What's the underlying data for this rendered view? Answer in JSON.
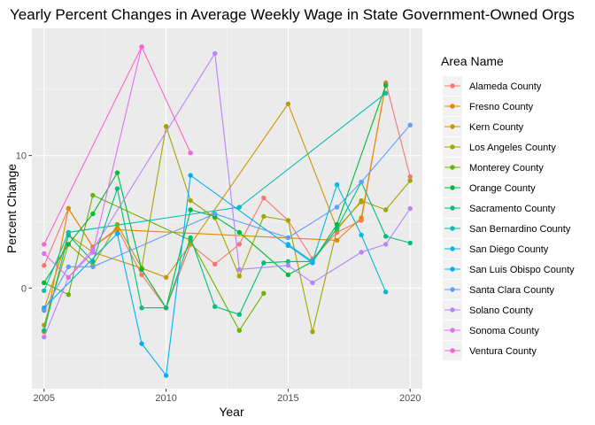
{
  "chart_data": {
    "type": "line",
    "title": "Yearly Percent Changes in Average Weekly Wage in State Government-Owned Orgs",
    "xlabel": "Year",
    "ylabel": "Percent Change",
    "xlim": [
      2004.5,
      2020.5
    ],
    "ylim": [
      -7.6,
      19.6
    ],
    "x_ticks": [
      2005,
      2010,
      2015,
      2020
    ],
    "y_ticks": [
      0,
      10
    ],
    "grid": true,
    "legend": {
      "title": "Area Name",
      "position": "right"
    },
    "series": [
      {
        "name": "Alameda County",
        "color": "#F8766D",
        "points": [
          [
            2005,
            1.7
          ],
          [
            2006,
            6.0
          ],
          [
            2007,
            3.1
          ],
          [
            2008,
            4.5
          ],
          [
            2009,
            1.0
          ],
          [
            2010,
            -1.5
          ],
          [
            2011,
            3.3
          ],
          [
            2012,
            1.8
          ],
          [
            2013,
            3.3
          ],
          [
            2014,
            6.8
          ],
          [
            2015,
            5.1
          ],
          [
            2016,
            2.2
          ],
          [
            2017,
            4.2
          ],
          [
            2018,
            5.1
          ],
          [
            2019,
            15.5
          ],
          [
            2020,
            8.4
          ]
        ]
      },
      {
        "name": "Fresno County",
        "color": "#E58700",
        "points": [
          [
            2005,
            -3.3
          ],
          [
            2006,
            6.0
          ],
          [
            2007,
            3.1
          ],
          [
            2008,
            4.4
          ],
          [
            2017,
            3.6
          ],
          [
            2018,
            5.3
          ],
          [
            2019,
            15.4
          ]
        ]
      },
      {
        "name": "Kern County",
        "color": "#C99800",
        "points": [
          [
            2005,
            -1.6
          ],
          [
            2006,
            4.0
          ],
          [
            2007,
            2.7
          ],
          [
            2009,
            1.5
          ],
          [
            2010,
            0.8
          ],
          [
            2011,
            3.3
          ],
          [
            2015,
            13.9
          ],
          [
            2017,
            4.5
          ],
          [
            2018,
            6.5
          ]
        ]
      },
      {
        "name": "Los Angeles County",
        "color": "#A3A500",
        "points": [
          [
            2005,
            -2.8
          ],
          [
            2006,
            3.3
          ],
          [
            2007,
            1.7
          ],
          [
            2008,
            4.8
          ],
          [
            2009,
            1.5
          ],
          [
            2010,
            12.2
          ],
          [
            2011,
            6.6
          ],
          [
            2012,
            5.3
          ],
          [
            2013,
            0.9
          ],
          [
            2014,
            5.4
          ],
          [
            2015,
            5.1
          ],
          [
            2016,
            -3.3
          ],
          [
            2017,
            4.4
          ],
          [
            2018,
            6.6
          ],
          [
            2019,
            5.9
          ],
          [
            2020,
            8.1
          ]
        ]
      },
      {
        "name": "Monterey County",
        "color": "#6BB100",
        "points": [
          [
            2005,
            0.4
          ],
          [
            2006,
            -0.5
          ],
          [
            2007,
            7.0
          ],
          [
            2011,
            3.6
          ],
          [
            2013,
            -3.2
          ],
          [
            2014,
            -0.4
          ]
        ]
      },
      {
        "name": "Orange County",
        "color": "#00BA38",
        "points": [
          [
            2005,
            0.4
          ],
          [
            2006,
            3.3
          ],
          [
            2007,
            5.6
          ],
          [
            2008,
            8.7
          ],
          [
            2009,
            1.4
          ],
          [
            2010,
            -1.5
          ],
          [
            2011,
            5.9
          ],
          [
            2012,
            5.4
          ],
          [
            2013,
            4.2
          ],
          [
            2015,
            1.0
          ],
          [
            2016,
            2.0
          ],
          [
            2017,
            4.8
          ],
          [
            2019,
            15.3
          ]
        ]
      },
      {
        "name": "Sacramento County",
        "color": "#00BF7D",
        "points": [
          [
            2005,
            -3.2
          ],
          [
            2006,
            4.0
          ],
          [
            2007,
            2.0
          ],
          [
            2008,
            7.5
          ],
          [
            2009,
            -1.5
          ],
          [
            2010,
            -1.5
          ],
          [
            2011,
            3.8
          ],
          [
            2012,
            -1.4
          ],
          [
            2013,
            -2.0
          ],
          [
            2014,
            1.9
          ],
          [
            2015,
            2.0
          ],
          [
            2016,
            2.0
          ],
          [
            2017,
            4.5
          ],
          [
            2018,
            8.0
          ],
          [
            2019,
            3.9
          ],
          [
            2020,
            3.4
          ]
        ]
      },
      {
        "name": "San Bernardino County",
        "color": "#00C0AF",
        "points": [
          [
            2005,
            -0.2
          ],
          [
            2006,
            4.2
          ],
          [
            2013,
            6.1
          ],
          [
            2019,
            14.7
          ]
        ]
      },
      {
        "name": "San Diego County",
        "color": "#00BCD8",
        "points": [
          [
            2015,
            3.3
          ],
          [
            2016,
            2.0
          ],
          [
            2017,
            7.8
          ],
          [
            2018,
            4.0
          ],
          [
            2019,
            -0.3
          ]
        ]
      },
      {
        "name": "San Luis Obispo County",
        "color": "#00B0F6",
        "points": [
          [
            2005,
            -1.5
          ],
          [
            2008,
            4.1
          ],
          [
            2009,
            -4.2
          ],
          [
            2010,
            -6.6
          ],
          [
            2011,
            8.5
          ],
          [
            2015,
            3.2
          ],
          [
            2016,
            1.9
          ]
        ]
      },
      {
        "name": "Santa Clara County",
        "color": "#619CFF",
        "points": [
          [
            2005,
            -1.7
          ],
          [
            2006,
            1.6
          ],
          [
            2007,
            1.6
          ],
          [
            2012,
            5.6
          ],
          [
            2015,
            3.8
          ],
          [
            2017,
            6.1
          ],
          [
            2018,
            8.0
          ],
          [
            2020,
            12.3
          ]
        ]
      },
      {
        "name": "Solano County",
        "color": "#B983FF",
        "points": [
          [
            2005,
            -3.7
          ],
          [
            2006,
            0.8
          ],
          [
            2007,
            2.9
          ],
          [
            2012,
            17.7
          ],
          [
            2013,
            1.4
          ],
          [
            2015,
            1.7
          ],
          [
            2016,
            0.4
          ],
          [
            2018,
            2.7
          ],
          [
            2019,
            3.3
          ],
          [
            2020,
            6.0
          ]
        ]
      },
      {
        "name": "Sonoma County",
        "color": "#E76BF3",
        "points": [
          [
            2005,
            2.6
          ],
          [
            2006,
            0.8
          ],
          [
            2007,
            2.7
          ],
          [
            2009,
            18.2
          ]
        ]
      },
      {
        "name": "Ventura County",
        "color": "#FD61D1",
        "points": [
          [
            2005,
            3.3
          ],
          [
            2009,
            18.2
          ],
          [
            2011,
            10.2
          ]
        ]
      }
    ]
  }
}
